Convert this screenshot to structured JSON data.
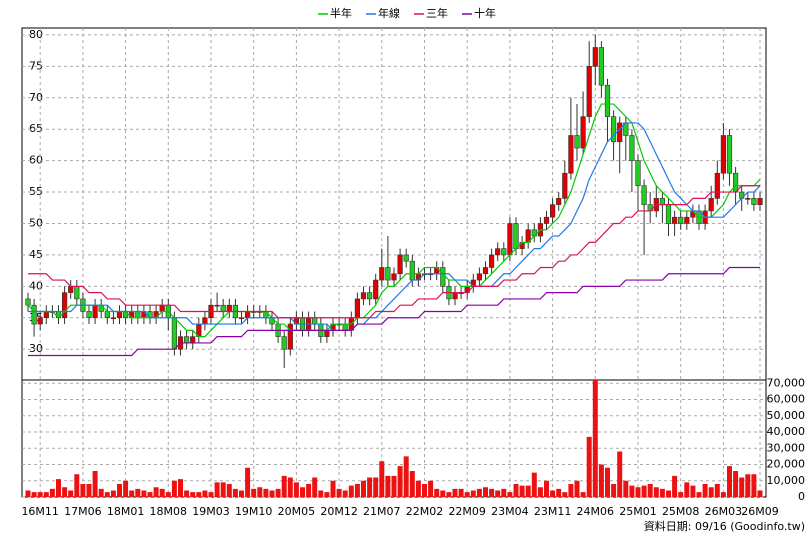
{
  "chart_data": {
    "type": "candlestick",
    "categories": [
      null,
      null,
      "16M11",
      null,
      null,
      null,
      null,
      null,
      null,
      "17M06",
      null,
      null,
      null,
      null,
      null,
      null,
      "18M01",
      null,
      null,
      null,
      null,
      null,
      null,
      "18M08",
      null,
      null,
      null,
      null,
      null,
      null,
      "19M03",
      null,
      null,
      null,
      null,
      null,
      null,
      "19M10",
      null,
      null,
      null,
      null,
      null,
      null,
      "20M05",
      null,
      null,
      null,
      null,
      null,
      null,
      "20M12",
      null,
      null,
      null,
      null,
      null,
      null,
      "21M07",
      null,
      null,
      null,
      null,
      null,
      null,
      "22M02",
      null,
      null,
      null,
      null,
      null,
      null,
      "22M09",
      null,
      null,
      null,
      null,
      null,
      null,
      "23M04",
      null,
      null,
      null,
      null,
      null,
      null,
      "23M11",
      null,
      null,
      null,
      null,
      null,
      null,
      "24M06",
      null,
      null,
      null,
      null,
      null,
      null,
      "25M01",
      null,
      null,
      null,
      null,
      null,
      null,
      "25M08",
      null,
      null,
      null,
      null,
      null,
      null,
      "26M03",
      null,
      null,
      null,
      null,
      null,
      "26M09"
    ],
    "open": [
      38,
      37,
      34,
      35,
      36,
      36,
      35,
      39,
      40,
      38,
      36,
      35,
      37,
      36,
      35,
      35,
      36,
      35,
      36,
      35,
      36,
      35,
      36,
      37,
      35,
      30,
      32,
      31,
      32,
      34,
      35,
      37,
      37,
      36,
      37,
      35,
      35,
      36,
      36,
      36,
      35,
      34,
      32,
      30,
      34,
      35,
      33,
      35,
      34,
      32,
      33,
      34,
      34,
      33,
      35,
      38,
      39,
      38,
      41,
      43,
      41,
      42,
      45,
      44,
      41,
      42,
      42,
      42,
      43,
      40,
      38,
      39,
      39,
      40,
      41,
      42,
      43,
      45,
      46,
      45,
      50,
      46,
      47,
      49,
      48,
      50,
      51,
      53,
      54,
      58,
      64,
      62,
      67,
      75,
      78,
      72,
      67,
      63,
      66,
      64,
      60,
      56,
      53,
      52,
      54,
      53,
      50,
      51,
      50,
      51,
      52,
      50,
      52,
      54,
      58,
      64,
      58,
      55,
      54,
      54,
      53
    ],
    "high": [
      39,
      38,
      36,
      37,
      37,
      37,
      40,
      41,
      41,
      39,
      37,
      38,
      38,
      37,
      36,
      37,
      37,
      37,
      37,
      37,
      37,
      37,
      38,
      38,
      36,
      33,
      33,
      33,
      35,
      36,
      38,
      39,
      38,
      38,
      38,
      36,
      37,
      37,
      37,
      37,
      36,
      35,
      33,
      35,
      36,
      36,
      36,
      36,
      35,
      34,
      35,
      35,
      35,
      36,
      39,
      40,
      40,
      42,
      46,
      48,
      43,
      46,
      46,
      45,
      43,
      43,
      43,
      44,
      44,
      41,
      40,
      40,
      41,
      42,
      43,
      44,
      46,
      47,
      47,
      51,
      51,
      48,
      50,
      50,
      51,
      52,
      54,
      55,
      60,
      70,
      69,
      71,
      79,
      80,
      79,
      73,
      68,
      67,
      67,
      65,
      61,
      57,
      55,
      56,
      55,
      54,
      52,
      52,
      52,
      53,
      53,
      53,
      56,
      60,
      66,
      65,
      59,
      56,
      55,
      55,
      55
    ],
    "low": [
      36,
      32,
      33,
      34,
      35,
      34,
      34,
      38,
      37,
      35,
      34,
      34,
      35,
      34,
      34,
      34,
      34,
      34,
      34,
      34,
      34,
      34,
      35,
      33,
      29,
      29,
      30,
      30,
      31,
      33,
      34,
      36,
      35,
      35,
      34,
      34,
      34,
      35,
      35,
      34,
      33,
      31,
      27,
      29,
      33,
      32,
      32,
      33,
      31,
      31,
      32,
      33,
      32,
      32,
      34,
      37,
      37,
      37,
      40,
      40,
      40,
      41,
      43,
      40,
      40,
      41,
      41,
      41,
      39,
      37,
      37,
      38,
      38,
      39,
      40,
      41,
      42,
      44,
      44,
      44,
      45,
      45,
      46,
      47,
      47,
      49,
      50,
      52,
      53,
      57,
      60,
      61,
      66,
      72,
      70,
      63,
      60,
      58,
      60,
      55,
      52,
      45,
      50,
      51,
      50,
      48,
      48,
      49,
      49,
      50,
      49,
      49,
      51,
      53,
      57,
      56,
      53,
      52,
      53,
      52,
      52
    ],
    "close": [
      37,
      34,
      35,
      36,
      36,
      35,
      39,
      40,
      38,
      36,
      35,
      37,
      36,
      35,
      35,
      36,
      35,
      36,
      35,
      36,
      35,
      36,
      37,
      35,
      30,
      32,
      31,
      32,
      34,
      35,
      37,
      37,
      36,
      37,
      35,
      35,
      36,
      36,
      36,
      35,
      34,
      32,
      30,
      34,
      35,
      33,
      35,
      34,
      32,
      33,
      34,
      34,
      33,
      35,
      38,
      39,
      38,
      41,
      43,
      41,
      42,
      45,
      44,
      41,
      42,
      42,
      42,
      43,
      40,
      38,
      39,
      39,
      40,
      41,
      42,
      43,
      45,
      46,
      45,
      50,
      46,
      47,
      49,
      48,
      50,
      51,
      53,
      54,
      58,
      64,
      62,
      67,
      75,
      78,
      72,
      67,
      63,
      66,
      64,
      60,
      56,
      53,
      52,
      54,
      53,
      50,
      51,
      50,
      51,
      52,
      50,
      52,
      54,
      58,
      64,
      58,
      55,
      54,
      54,
      53,
      54
    ],
    "up_color": "#e00000",
    "down_color": "#22cc22",
    "series": [
      {
        "name": "半年",
        "color": "#00cc00",
        "values": [
          37,
          36,
          36,
          36,
          36,
          35,
          36,
          37,
          37,
          37,
          37,
          37,
          37,
          36,
          36,
          36,
          36,
          35,
          35,
          35,
          35,
          35,
          36,
          36,
          35,
          34,
          33,
          33,
          32,
          32,
          33,
          34,
          35,
          36,
          36,
          36,
          36,
          36,
          36,
          36,
          35,
          34,
          34,
          33,
          33,
          33,
          33,
          33,
          33,
          33,
          34,
          34,
          34,
          34,
          35,
          35,
          36,
          37,
          39,
          40,
          40,
          41,
          42,
          42,
          42,
          43,
          43,
          43,
          42,
          41,
          41,
          40,
          40,
          40,
          40,
          41,
          42,
          43,
          44,
          45,
          46,
          47,
          47,
          48,
          49,
          49,
          50,
          51,
          53,
          55,
          58,
          61,
          64,
          67,
          69,
          69,
          69,
          68,
          67,
          66,
          63,
          60,
          58,
          56,
          55,
          54,
          53,
          52,
          52,
          52,
          51,
          51,
          51,
          52,
          53,
          55,
          56,
          56,
          56,
          56,
          57
        ]
      },
      {
        "name": "年線",
        "color": "#1e78e6",
        "values": [
          36,
          36,
          36,
          36,
          36,
          36,
          36,
          36,
          37,
          37,
          37,
          37,
          37,
          37,
          36,
          36,
          36,
          36,
          36,
          36,
          35,
          35,
          35,
          35,
          35,
          35,
          35,
          34,
          34,
          34,
          34,
          34,
          34,
          34,
          34,
          34,
          35,
          35,
          35,
          35,
          35,
          35,
          35,
          35,
          34,
          34,
          34,
          34,
          34,
          34,
          33,
          33,
          33,
          33,
          34,
          34,
          35,
          35,
          36,
          37,
          38,
          39,
          40,
          41,
          41,
          42,
          42,
          42,
          42,
          42,
          41,
          41,
          41,
          40,
          40,
          40,
          40,
          41,
          42,
          42,
          43,
          44,
          45,
          46,
          46,
          47,
          48,
          48,
          49,
          50,
          52,
          54,
          57,
          59,
          61,
          63,
          64,
          65,
          66,
          66,
          66,
          65,
          63,
          61,
          59,
          57,
          55,
          54,
          53,
          52,
          52,
          51,
          51,
          51,
          51,
          52,
          53,
          54,
          55,
          55,
          56
        ]
      },
      {
        "name": "三年",
        "color": "#dd1155",
        "values": [
          42,
          42,
          42,
          42,
          41,
          41,
          41,
          40,
          40,
          40,
          39,
          39,
          39,
          38,
          38,
          38,
          37,
          37,
          37,
          37,
          37,
          37,
          37,
          37,
          37,
          36,
          36,
          36,
          36,
          36,
          36,
          36,
          36,
          36,
          36,
          36,
          36,
          36,
          36,
          36,
          36,
          35,
          35,
          35,
          35,
          35,
          35,
          35,
          35,
          35,
          35,
          35,
          35,
          35,
          35,
          35,
          35,
          36,
          36,
          36,
          36,
          37,
          37,
          37,
          38,
          38,
          38,
          38,
          39,
          39,
          39,
          39,
          39,
          40,
          40,
          40,
          40,
          40,
          41,
          41,
          41,
          42,
          42,
          42,
          43,
          43,
          43,
          44,
          44,
          45,
          45,
          46,
          47,
          47,
          48,
          49,
          50,
          50,
          51,
          51,
          52,
          52,
          52,
          53,
          53,
          53,
          53,
          53,
          53,
          54,
          54,
          54,
          55,
          55,
          55,
          55,
          55,
          56,
          56,
          56,
          56
        ]
      },
      {
        "name": "十年",
        "color": "#8800aa",
        "values": [
          29,
          29,
          29,
          29,
          29,
          29,
          29,
          29,
          29,
          29,
          29,
          29,
          29,
          29,
          29,
          29,
          29,
          29,
          30,
          30,
          30,
          30,
          30,
          30,
          30,
          31,
          31,
          31,
          31,
          31,
          31,
          32,
          32,
          32,
          32,
          32,
          33,
          33,
          33,
          33,
          33,
          33,
          33,
          33,
          33,
          33,
          33,
          33,
          33,
          33,
          33,
          33,
          33,
          33,
          34,
          34,
          34,
          34,
          34,
          35,
          35,
          35,
          35,
          35,
          35,
          36,
          36,
          36,
          36,
          36,
          36,
          36,
          37,
          37,
          37,
          37,
          37,
          37,
          38,
          38,
          38,
          38,
          38,
          38,
          38,
          39,
          39,
          39,
          39,
          39,
          39,
          40,
          40,
          40,
          40,
          40,
          40,
          40,
          41,
          41,
          41,
          41,
          41,
          41,
          41,
          42,
          42,
          42,
          42,
          42,
          42,
          42,
          42,
          42,
          42,
          43,
          43,
          43,
          43,
          43,
          43
        ]
      }
    ],
    "ylim": [
      25.1,
      81.1
    ],
    "yticks": [
      30,
      35,
      40,
      45,
      50,
      55,
      60,
      65,
      70,
      75,
      80
    ],
    "volume": {
      "color": "#ee1111",
      "values": [
        4000,
        3000,
        3000,
        3000,
        5000,
        11000,
        6000,
        4000,
        14000,
        8000,
        8000,
        16000,
        5000,
        3000,
        4000,
        8000,
        10000,
        4000,
        5000,
        4000,
        3000,
        6000,
        5000,
        3000,
        10000,
        11000,
        4000,
        3000,
        3000,
        4000,
        3000,
        9000,
        9000,
        8000,
        5000,
        4000,
        18000,
        5000,
        6000,
        5000,
        4000,
        5000,
        13000,
        12000,
        9000,
        6000,
        8000,
        12000,
        4000,
        3000,
        10000,
        5000,
        4000,
        7000,
        8000,
        10000,
        12000,
        12000,
        22000,
        13000,
        13000,
        19000,
        25000,
        16000,
        10000,
        8000,
        10000,
        5000,
        4000,
        3000,
        5000,
        5000,
        3000,
        4000,
        5000,
        6000,
        5000,
        4000,
        5000,
        3000,
        8000,
        7000,
        7000,
        15000,
        6000,
        10000,
        4000,
        5000,
        3000,
        8000,
        10000,
        3000,
        37000,
        72000,
        20000,
        18000,
        8000,
        28000,
        10000,
        7000,
        6000,
        7000,
        8000,
        6000,
        5000,
        4000,
        13000,
        3000,
        9000,
        7000,
        3000,
        8000,
        6000,
        8000,
        3000,
        19000,
        16000,
        12000,
        14000,
        14000,
        4000
      ],
      "ylim": [
        0,
        72000
      ],
      "yticks": [
        0,
        {
          "value": 10000,
          "label": "10,000"
        },
        {
          "value": 20000,
          "label": "20,000"
        },
        {
          "value": 30000,
          "label": "30,000"
        },
        {
          "value": 40000,
          "label": "40,000"
        },
        {
          "value": 50000,
          "label": "50,000"
        },
        {
          "value": 60000,
          "label": "60,000"
        },
        {
          "value": 70000,
          "label": "70,000"
        }
      ]
    },
    "grid": true,
    "footer": "資料日期: 09/16 (Goodinfo.tw)"
  }
}
